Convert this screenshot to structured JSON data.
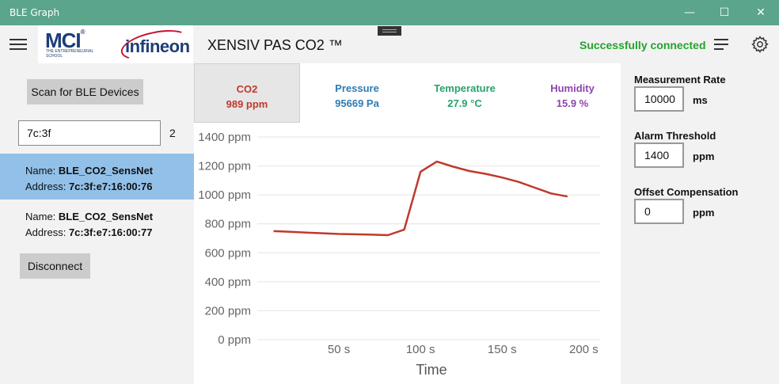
{
  "window": {
    "title": "BLE Graph",
    "min_glyph": "—",
    "max_glyph": "☐",
    "close_glyph": "✕"
  },
  "header": {
    "app_title": "XENSIV PAS CO2 ™",
    "status": "Successfully connected",
    "mci_logo": "MCI",
    "mci_registered": "®",
    "mci_subtitle_1": "THE ENTREPRENEURIAL",
    "mci_subtitle_2": "SCHOOL",
    "infineon_logo": "infineon"
  },
  "colors": {
    "titlebar": "#5aa58b",
    "status_green": "#23a32d",
    "selected_device": "#92c0e8",
    "co2": "#c0392b",
    "pressure": "#2e7bb5",
    "temperature": "#27a36c",
    "humidity": "#8e44ad"
  },
  "left": {
    "scan_button": "Scan for BLE Devices",
    "filter_value": "7c:3f",
    "filter_count": "2",
    "devices": [
      {
        "name_label": "Name:",
        "name": "BLE_CO2_SensNet",
        "address_label": "Address:",
        "address": "7c:3f:e7:16:00:76",
        "selected": true
      },
      {
        "name_label": "Name:",
        "name": "BLE_CO2_SensNet",
        "address_label": "Address:",
        "address": "7c:3f:e7:16:00:77",
        "selected": false
      }
    ],
    "disconnect_button": "Disconnect"
  },
  "tabs": [
    {
      "label": "CO2",
      "value": "989 ppm"
    },
    {
      "label": "Pressure",
      "value": "95669 Pa"
    },
    {
      "label": "Temperature",
      "value": "27.9 °C"
    },
    {
      "label": "Humidity",
      "value": "15.9 %"
    }
  ],
  "settings": {
    "measurement_rate_label": "Measurement Rate",
    "measurement_rate_value": "10000",
    "measurement_rate_unit": "ms",
    "alarm_label": "Alarm Threshold",
    "alarm_value": "1400",
    "alarm_unit": "ppm",
    "offset_label": "Offset Compensation",
    "offset_value": "0",
    "offset_unit": "ppm"
  },
  "chart_data": {
    "type": "line",
    "xlabel": "Time",
    "ylabel": "",
    "xlim": [
      0,
      200
    ],
    "ylim": [
      0,
      1400
    ],
    "x_ticks": [
      {
        "value": 50,
        "label": "50 s"
      },
      {
        "value": 100,
        "label": "100 s"
      },
      {
        "value": 150,
        "label": "150 s"
      },
      {
        "value": 200,
        "label": "200 s"
      }
    ],
    "y_ticks": [
      {
        "value": 0,
        "label": "0 ppm"
      },
      {
        "value": 200,
        "label": "200 ppm"
      },
      {
        "value": 400,
        "label": "400 ppm"
      },
      {
        "value": 600,
        "label": "600 ppm"
      },
      {
        "value": 800,
        "label": "800 ppm"
      },
      {
        "value": 1000,
        "label": "1000 ppm"
      },
      {
        "value": 1200,
        "label": "1200 ppm"
      },
      {
        "value": 1400,
        "label": "1400 ppm"
      }
    ],
    "grid": true,
    "series": [
      {
        "color": "#c0392b",
        "x": [
          10,
          20,
          30,
          40,
          50,
          60,
          70,
          80,
          90,
          100,
          110,
          120,
          130,
          140,
          150,
          160,
          170,
          180,
          190
        ],
        "y": [
          750,
          745,
          740,
          735,
          730,
          728,
          725,
          722,
          760,
          1160,
          1230,
          1195,
          1165,
          1145,
          1120,
          1090,
          1050,
          1010,
          989
        ]
      }
    ]
  }
}
